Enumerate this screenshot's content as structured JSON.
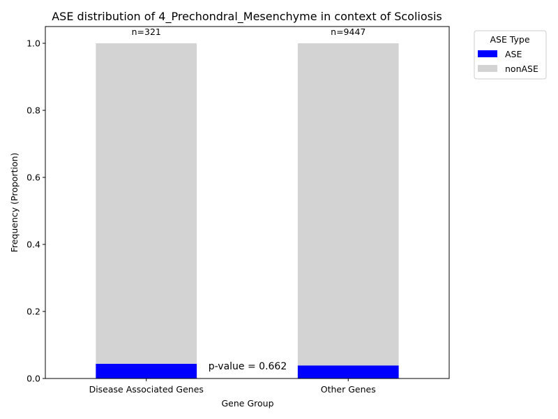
{
  "chart_data": {
    "type": "bar",
    "stacked": true,
    "title": "ASE distribution of 4_Prechondral_Mesenchyme in context of Scoliosis",
    "xlabel": "Gene Group",
    "ylabel": "Frequency (Proportion)",
    "categories": [
      "Disease Associated Genes",
      "Other Genes"
    ],
    "series": [
      {
        "name": "ASE",
        "color": "#0000ff",
        "values": [
          0.044,
          0.039
        ]
      },
      {
        "name": "nonASE",
        "color": "#d3d3d3",
        "values": [
          0.956,
          0.961
        ]
      }
    ],
    "ylim": [
      0,
      1.05
    ],
    "yticks": [
      "0.0",
      "0.2",
      "0.4",
      "0.6",
      "0.8",
      "1.0"
    ],
    "bar_annotations": [
      "n=321",
      "n=9447"
    ],
    "pvalue_text": "p-value = 0.662",
    "legend": {
      "title": "ASE Type",
      "position": "outside-top-right"
    },
    "grid": false
  }
}
